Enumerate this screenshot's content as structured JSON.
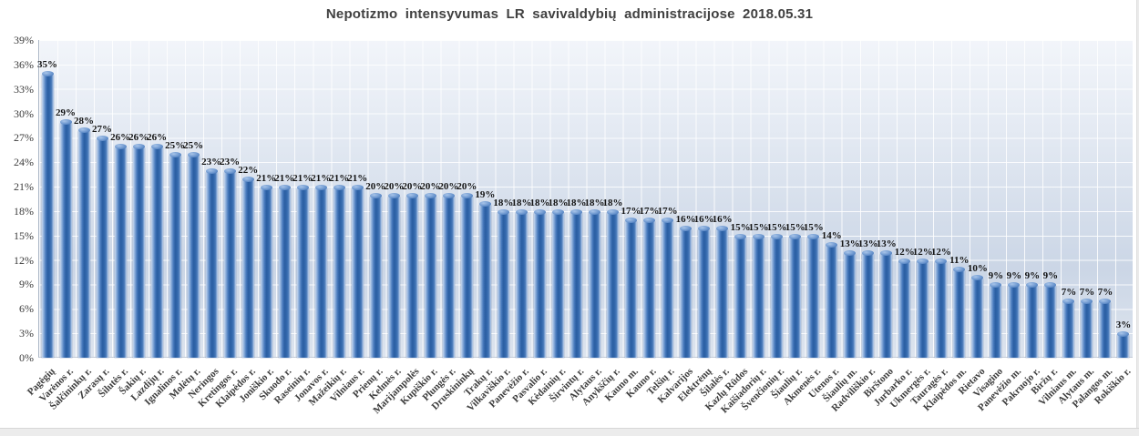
{
  "title": "Nepotizmo intensyvumas LR savivaldybių administracijose 2018.05.31",
  "chart_data": {
    "type": "bar",
    "title": "Nepotizmo intensyvumas LR savivaldybių administracijose 2018.05.31",
    "xlabel": "",
    "ylabel": "",
    "ylim": [
      0,
      39
    ],
    "ytick_step": 3,
    "y_ticks": [
      "0%",
      "3%",
      "6%",
      "9%",
      "12%",
      "15%",
      "18%",
      "21%",
      "24%",
      "27%",
      "30%",
      "33%",
      "36%",
      "39%"
    ],
    "grid": true,
    "legend": null,
    "bar_color": "#2e63a8",
    "value_label_suffix": "%",
    "categories": [
      "Pagėgių",
      "Varėnos r.",
      "Šalčininkų r.",
      "Zarasų r.",
      "Šilutės r.",
      "Šakių r.",
      "Lazdijų r.",
      "Ignalinos r.",
      "Molėtų r.",
      "Neringos",
      "Kretingos r.",
      "Klaipėdos r.",
      "Joniškio r.",
      "Skuodo r.",
      "Raseinių r.",
      "Jonavos r.",
      "Mažeikių r.",
      "Vilniaus r.",
      "Prienų r.",
      "Kelmės r.",
      "Marijampolės",
      "Kupiškio r.",
      "Plungės r.",
      "Druskininkų",
      "Trakų r.",
      "Vilkaviškio r.",
      "Panevėžio r.",
      "Pasvalio r.",
      "Kėdainių r.",
      "Širvintų r.",
      "Alytaus r.",
      "Anykščių r.",
      "Kauno m.",
      "Kauno r.",
      "Telšių r.",
      "Kalvarijos",
      "Elektrėnų",
      "Šilalės r.",
      "Kazlų Rūdos",
      "Kaišiadorių r.",
      "Švenčionių r.",
      "Šiaulių r.",
      "Akmenės r.",
      "Utenos r.",
      "Šiaulių m.",
      "Radviliškio r.",
      "Birštono",
      "Jurbarko r.",
      "Ukmergės r.",
      "Tauragės r.",
      "Klaipėdos m.",
      "Rietavo",
      "Visagino",
      "Panevėžio m.",
      "Pakruojo r.",
      "Biržų r.",
      "Vilniaus m.",
      "Alytaus m.",
      "Palangos m.",
      "Rokiškio r."
    ],
    "values": [
      35,
      29,
      28,
      27,
      26,
      26,
      26,
      25,
      25,
      23,
      23,
      22,
      21,
      21,
      21,
      21,
      21,
      21,
      20,
      20,
      20,
      20,
      20,
      20,
      19,
      18,
      18,
      18,
      18,
      18,
      18,
      18,
      17,
      17,
      17,
      16,
      16,
      16,
      15,
      15,
      15,
      15,
      15,
      14,
      13,
      13,
      13,
      12,
      12,
      12,
      11,
      10,
      9,
      9,
      9,
      9,
      7,
      7,
      7,
      3
    ]
  }
}
